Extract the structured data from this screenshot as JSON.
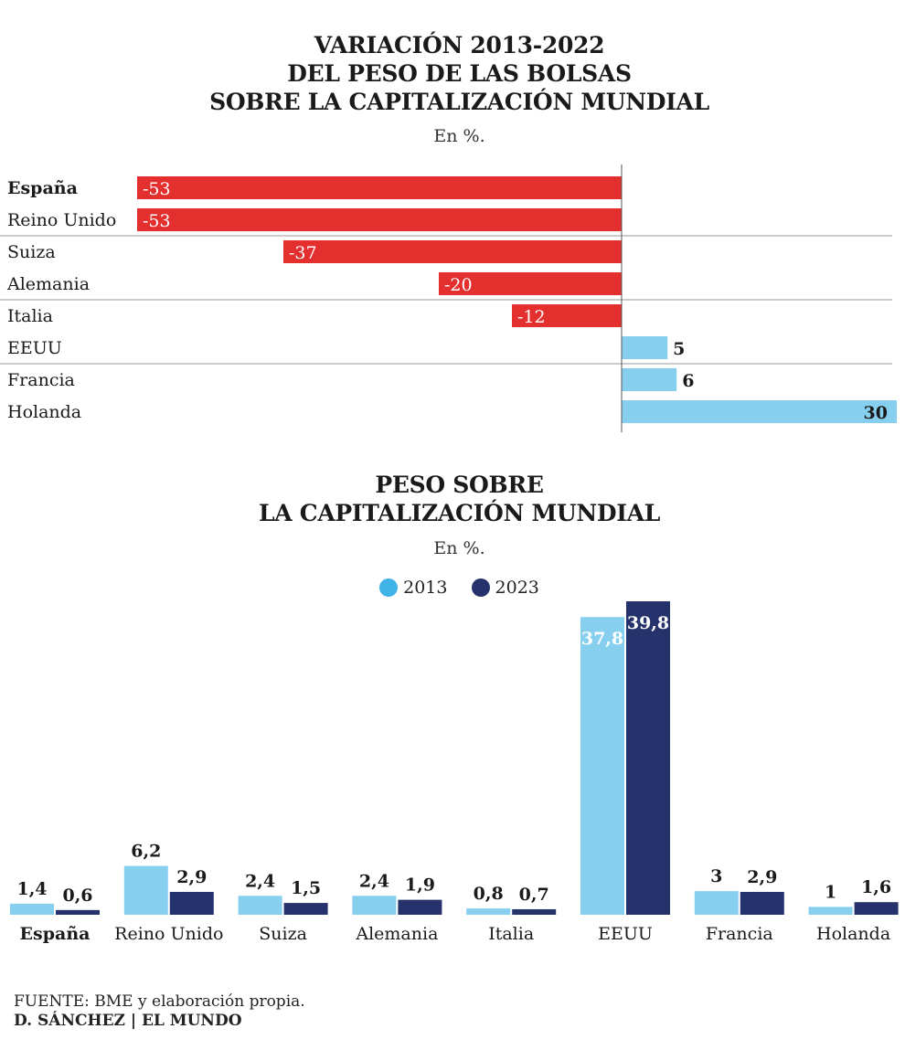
{
  "chart1": {
    "title_lines": [
      "VARIACIÓN 2013-2022",
      "DEL PESO DE LAS BOLSAS",
      "SOBRE LA CAPITALIZACIÓN MUNDIAL"
    ],
    "subtitle": "En %.",
    "colors": {
      "negative": "#e3302f",
      "positive": "#87cfef"
    }
  },
  "chart2": {
    "title_lines": [
      "PESO SOBRE",
      "LA CAPITALIZACIÓN MUNDIAL"
    ],
    "subtitle": "En %.",
    "colors": {
      "2013": "#87cfef",
      "2023": "#26326b"
    }
  },
  "footer": {
    "source": "FUENTE: BME y elaboración propia.",
    "credit": "D. SÁNCHEZ | EL MUNDO"
  },
  "chart_data": [
    {
      "type": "bar",
      "orientation": "horizontal",
      "title": "VARIACIÓN 2013-2022 DEL PESO DE LAS BOLSAS SOBRE LA CAPITALIZACIÓN MUNDIAL",
      "subtitle": "En %.",
      "categories": [
        "España",
        "Reino Unido",
        "Suiza",
        "Alemania",
        "Italia",
        "EEUU",
        "Francia",
        "Holanda"
      ],
      "values": [
        -53,
        -53,
        -37,
        -20,
        -12,
        5,
        6,
        30
      ],
      "labels": [
        "-53",
        "-53",
        "-37",
        "-20",
        "-12",
        "5",
        "6",
        "30"
      ],
      "xlim": [
        -53,
        30
      ],
      "highlight": "España"
    },
    {
      "type": "bar",
      "orientation": "vertical",
      "title": "PESO SOBRE LA CAPITALIZACIÓN MUNDIAL",
      "subtitle": "En %.",
      "categories": [
        "España",
        "Reino Unido",
        "Suiza",
        "Alemania",
        "Italia",
        "EEUU",
        "Francia",
        "Holanda"
      ],
      "series": [
        {
          "name": "2013",
          "values": [
            1.4,
            6.2,
            2.4,
            2.4,
            0.8,
            37.8,
            3,
            1
          ],
          "labels": [
            "1,4",
            "6,2",
            "2,4",
            "2,4",
            "0,8",
            "37,8",
            "3",
            "1"
          ]
        },
        {
          "name": "2023",
          "values": [
            0.6,
            2.9,
            1.5,
            1.9,
            0.7,
            39.8,
            2.9,
            1.6
          ],
          "labels": [
            "0,6",
            "2,9",
            "1,5",
            "1,9",
            "0,7",
            "39,8",
            "2,9",
            "1,6"
          ]
        }
      ],
      "ylim": [
        0,
        39.8
      ],
      "legend": "top-center",
      "highlight": "España"
    }
  ]
}
